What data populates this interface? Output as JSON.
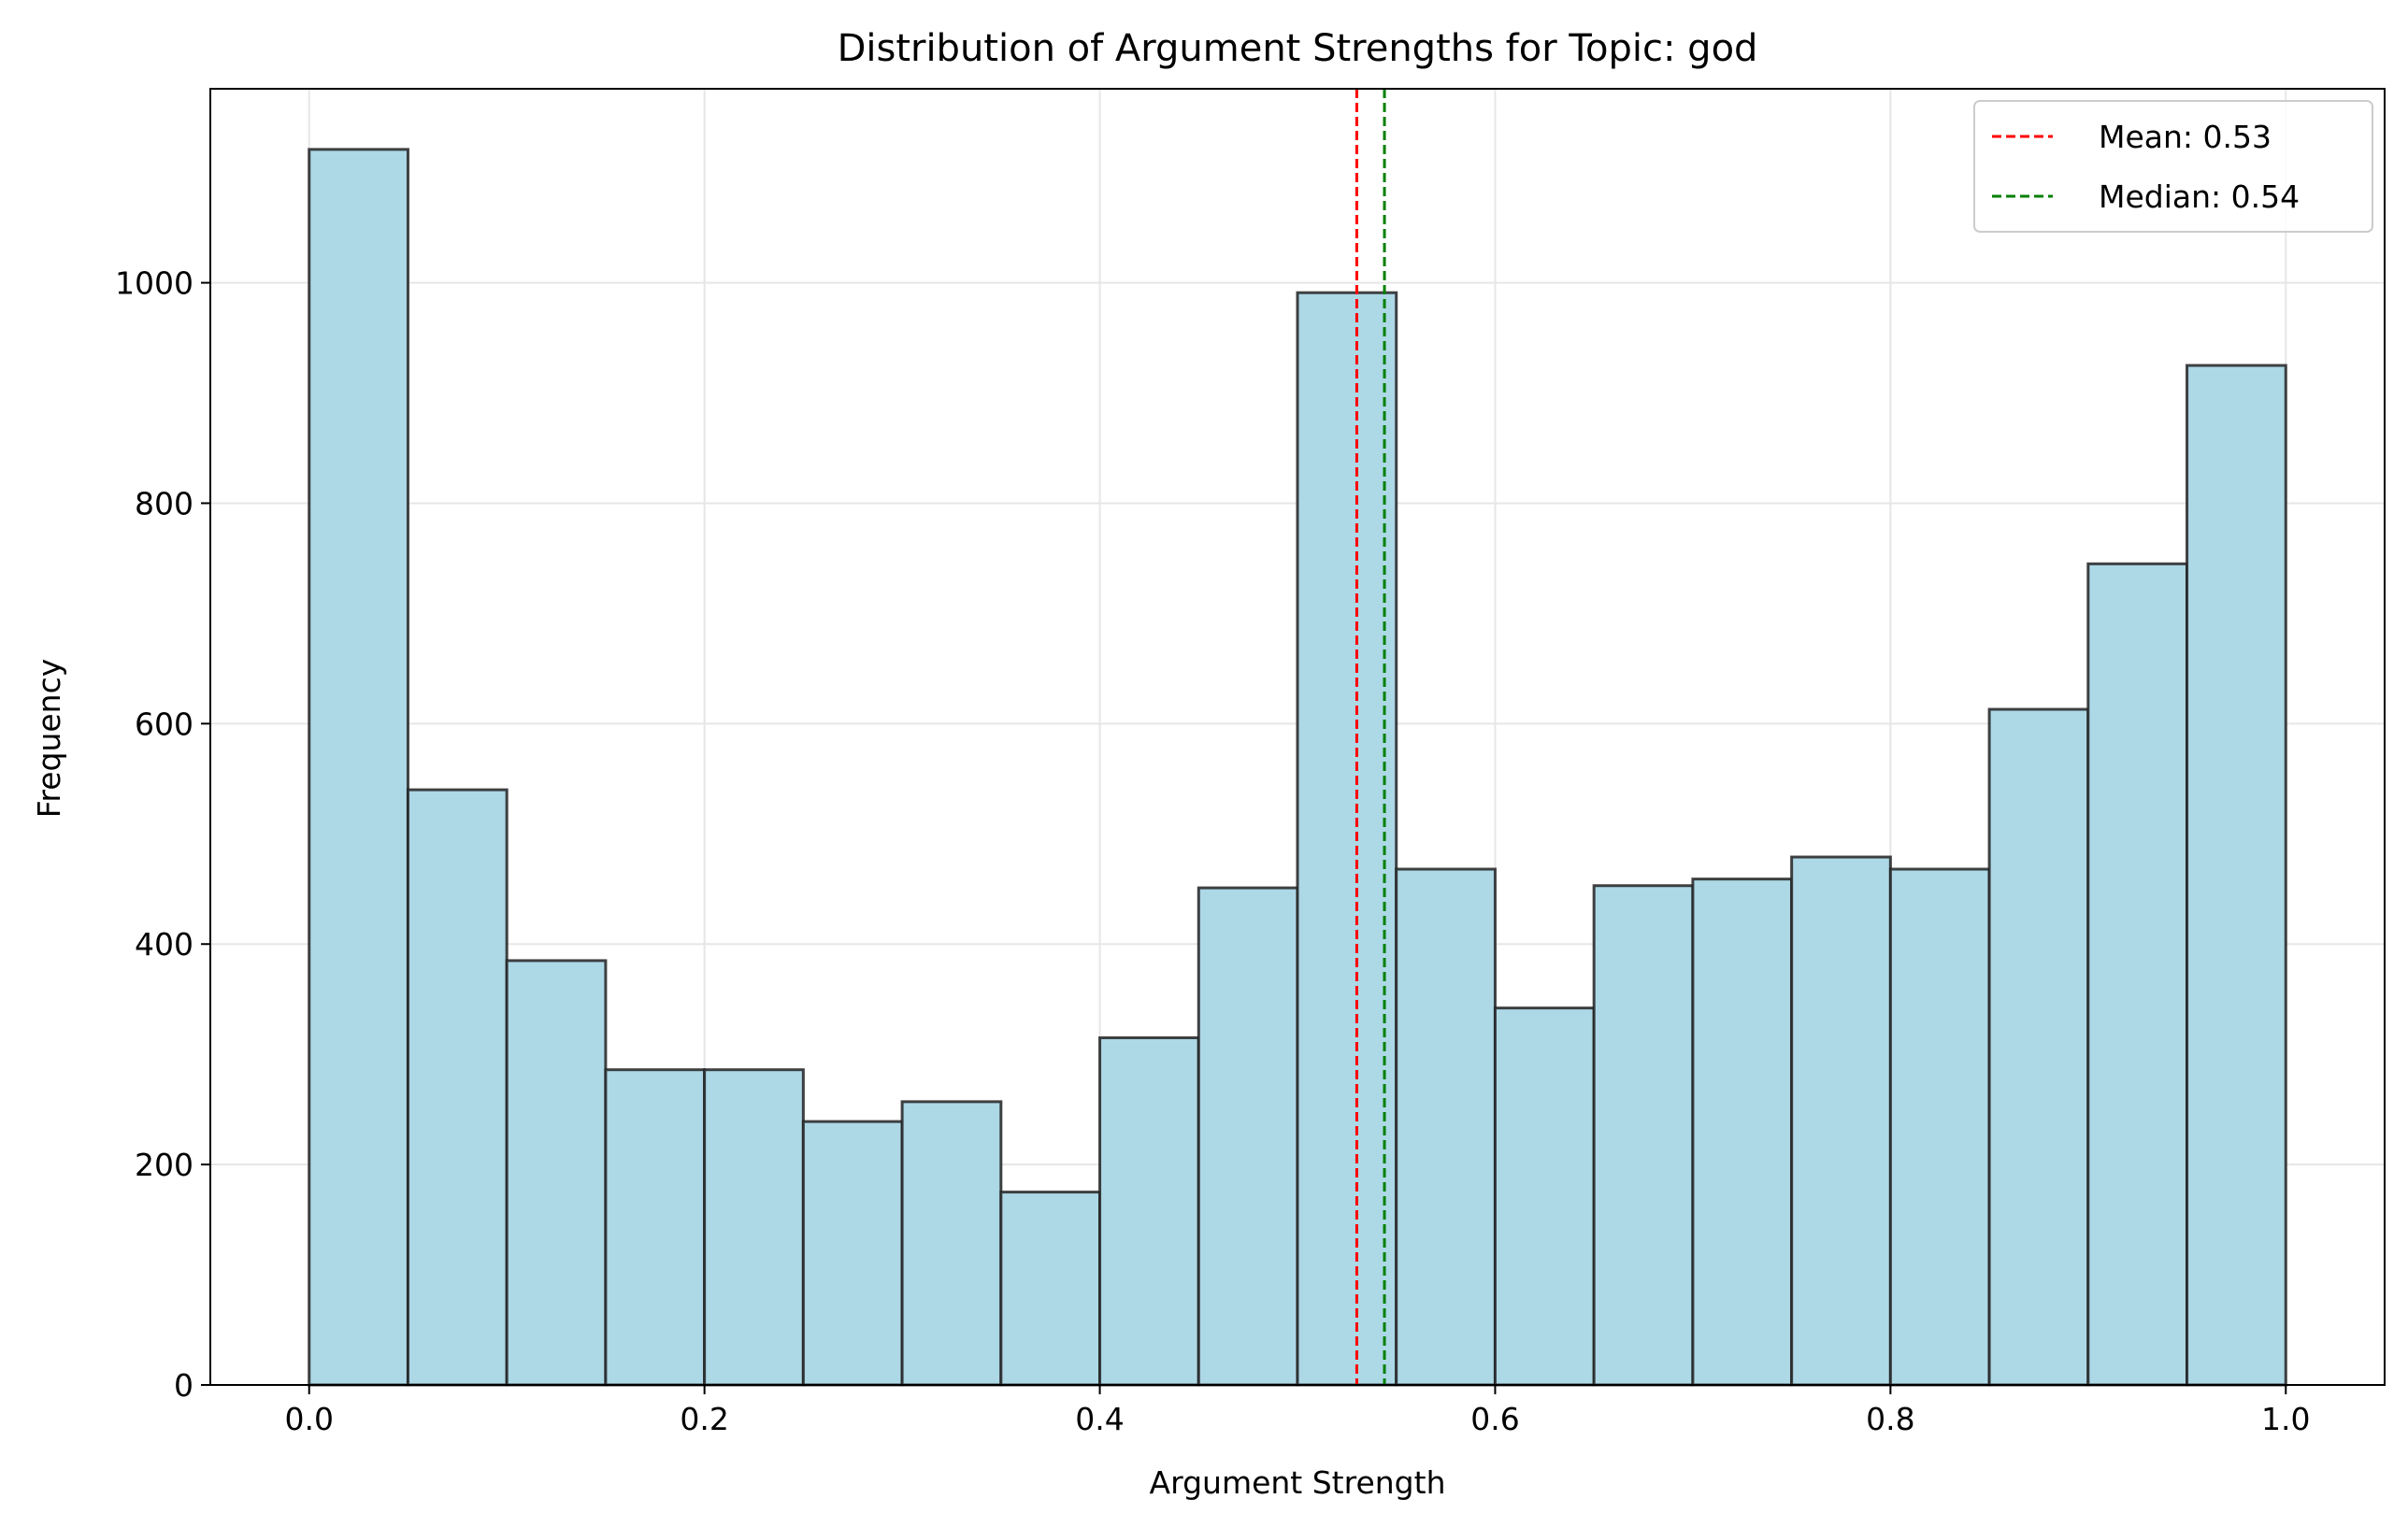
{
  "chart_data": {
    "type": "bar",
    "title": "Distribution of Argument Strengths for Topic: god",
    "xlabel": "Argument Strength",
    "ylabel": "Frequency",
    "xlim": [
      -0.05,
      1.05
    ],
    "ylim": [
      0,
      1176
    ],
    "xticks": [
      0.0,
      0.2,
      0.4,
      0.6,
      0.8,
      1.0
    ],
    "xtick_labels": [
      "0.0",
      "0.2",
      "0.4",
      "0.6",
      "0.8",
      "1.0"
    ],
    "yticks": [
      0,
      200,
      400,
      600,
      800,
      1000
    ],
    "ytick_labels": [
      "0",
      "200",
      "400",
      "600",
      "800",
      "1000"
    ],
    "grid": true,
    "bins": [
      {
        "x0": 0.0,
        "x1": 0.05,
        "value": 1121
      },
      {
        "x0": 0.05,
        "x1": 0.1,
        "value": 540
      },
      {
        "x0": 0.1,
        "x1": 0.15,
        "value": 385
      },
      {
        "x0": 0.15,
        "x1": 0.2,
        "value": 286
      },
      {
        "x0": 0.2,
        "x1": 0.25,
        "value": 286
      },
      {
        "x0": 0.25,
        "x1": 0.3,
        "value": 239
      },
      {
        "x0": 0.3,
        "x1": 0.35,
        "value": 257
      },
      {
        "x0": 0.35,
        "x1": 0.4,
        "value": 175
      },
      {
        "x0": 0.4,
        "x1": 0.45,
        "value": 315
      },
      {
        "x0": 0.45,
        "x1": 0.5,
        "value": 451
      },
      {
        "x0": 0.5,
        "x1": 0.55,
        "value": 991
      },
      {
        "x0": 0.55,
        "x1": 0.6,
        "value": 468
      },
      {
        "x0": 0.6,
        "x1": 0.65,
        "value": 342
      },
      {
        "x0": 0.65,
        "x1": 0.7,
        "value": 453
      },
      {
        "x0": 0.7,
        "x1": 0.75,
        "value": 459
      },
      {
        "x0": 0.75,
        "x1": 0.8,
        "value": 479
      },
      {
        "x0": 0.8,
        "x1": 0.85,
        "value": 468
      },
      {
        "x0": 0.85,
        "x1": 0.9,
        "value": 613
      },
      {
        "x0": 0.9,
        "x1": 0.95,
        "value": 745
      },
      {
        "x0": 0.95,
        "x1": 1.0,
        "value": 925
      }
    ],
    "bar_color": "#add8e6",
    "bar_edge_color": "#222222",
    "reference_lines": [
      {
        "name": "Mean: 0.53",
        "value": 0.53,
        "color": "#ff0000",
        "style": "dashed"
      },
      {
        "name": "Median: 0.54",
        "value": 0.544,
        "color": "#008000",
        "style": "dashed"
      }
    ],
    "legend_position": "top-right"
  }
}
